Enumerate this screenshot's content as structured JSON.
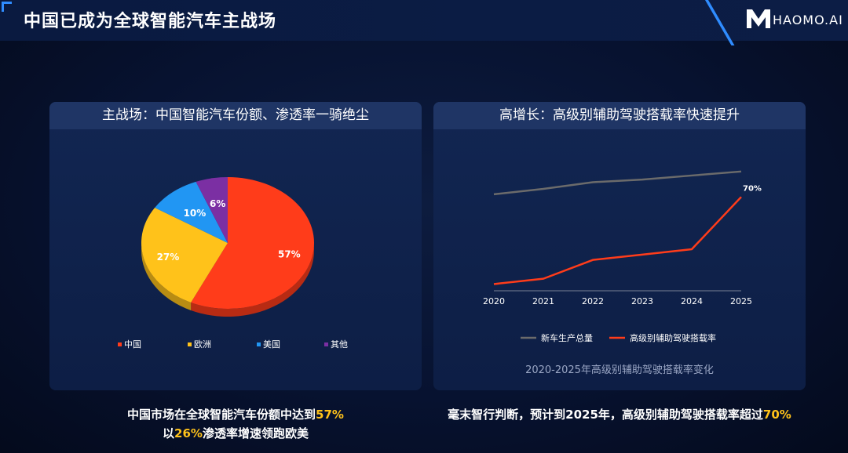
{
  "header": {
    "title": "中国已成为全球智能汽车主战场",
    "logo": "HAOMO.AI"
  },
  "left_card": {
    "title": "主战场：中国智能汽车份额、渗透率一骑绝尘",
    "caption_line1_pre": "中国市场在全球智能汽车份额中达到",
    "caption_line1_hl": "57%",
    "caption_line2_pre": "以",
    "caption_line2_hl": "26%",
    "caption_line2_post": "渗透率增速领跑欧美"
  },
  "right_card": {
    "title": "高增长：高级别辅助驾驶搭载率快速提升",
    "caption_pre": "毫末智行判断，预计到2025年，高级别辅助驾驶搭载率超过",
    "caption_hl": "70%"
  },
  "chart_data": [
    {
      "type": "pie",
      "categories": [
        "中国",
        "欧洲",
        "美国",
        "其他"
      ],
      "values": [
        57,
        27,
        10,
        6
      ],
      "labels": [
        "57%",
        "27%",
        "10%",
        "6%"
      ],
      "colors": [
        "#ff3c1a",
        "#ffc21a",
        "#2196f3",
        "#7b2fa3"
      ],
      "legend": "bottom"
    },
    {
      "type": "line",
      "title": "2020-2025年高级别辅助驾驶搭载率变化",
      "x": [
        "2020",
        "2021",
        "2022",
        "2023",
        "2024",
        "2025"
      ],
      "series": [
        {
          "name": "新车生产总量",
          "values": [
            72,
            76,
            81,
            83,
            86,
            89
          ],
          "color": "#6b6b6b"
        },
        {
          "name": "高级别辅助驾驶搭载率",
          "values": [
            5,
            9,
            23,
            27,
            31,
            70
          ],
          "color": "#ff3c1a"
        }
      ],
      "annotations": [
        {
          "series": 1,
          "index": 5,
          "text": "70%"
        }
      ],
      "ylim": [
        0,
        100
      ],
      "legend": "bottom"
    }
  ]
}
